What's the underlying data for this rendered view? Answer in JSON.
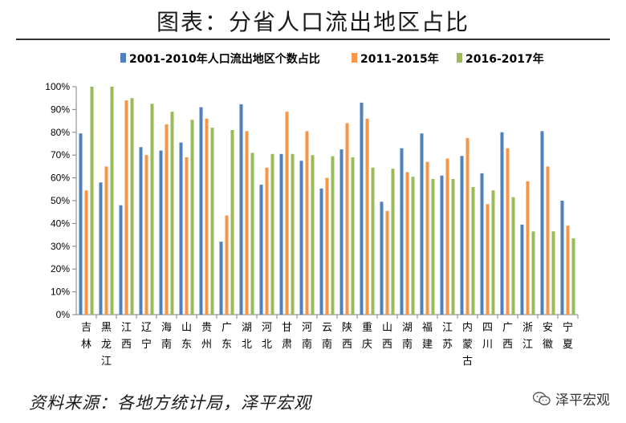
{
  "title": "图表：分省人口流出地区占比",
  "source": "资料来源：各地方统计局，泽平宏观",
  "watermark": "泽平宏观",
  "watermark_icon": "wechat-icon",
  "colors": {
    "series1": "#4F81BD",
    "series2": "#F79646",
    "series3": "#9BBB59"
  },
  "chart_data": {
    "type": "bar",
    "ylim": [
      0,
      100
    ],
    "y_ticks": [
      "0%",
      "10%",
      "20%",
      "30%",
      "40%",
      "50%",
      "60%",
      "70%",
      "80%",
      "90%",
      "100%"
    ],
    "y_tick_values": [
      0,
      10,
      20,
      30,
      40,
      50,
      60,
      70,
      80,
      90,
      100
    ],
    "grid": false,
    "legend_position": "top",
    "categories": [
      "吉林",
      "黑龙江",
      "江西",
      "辽宁",
      "海南",
      "山东",
      "贵州",
      "广东",
      "湖北",
      "河北",
      "甘肃",
      "河南",
      "云南",
      "陕西",
      "重庆",
      "山西",
      "湖南",
      "福建",
      "江苏",
      "内蒙古",
      "四川",
      "广西",
      "浙江",
      "安徽",
      "宁夏"
    ],
    "series": [
      {
        "name": "2001-2010年人口流出地区个数占比",
        "values": [
          79.5,
          58,
          48,
          73.5,
          72,
          75.5,
          91,
          32,
          92.3,
          57,
          70.5,
          67.5,
          55.3,
          72.5,
          93,
          49.5,
          73,
          79.5,
          61,
          69.6,
          62,
          80,
          39.5,
          80.5,
          50
        ]
      },
      {
        "name": "2011-2015年",
        "values": [
          54.5,
          65,
          94,
          70,
          83.5,
          69,
          86,
          43.5,
          80.5,
          64.5,
          89,
          80.5,
          60,
          84,
          86,
          45.5,
          62.5,
          67,
          68.5,
          77.5,
          48.5,
          73,
          58.5,
          65,
          39
        ]
      },
      {
        "name": "2016-2017年",
        "values": [
          100,
          100,
          95,
          92.5,
          89,
          85.5,
          82,
          81,
          71,
          70.5,
          70.5,
          70,
          69.5,
          69,
          64.5,
          64,
          60.5,
          59.5,
          59.5,
          56,
          54.5,
          51.5,
          36.5,
          36.5,
          33.5
        ]
      }
    ]
  }
}
